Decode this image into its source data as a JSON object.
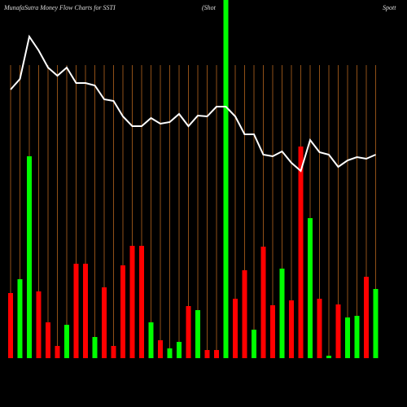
{
  "chart_data": {
    "type": "bar",
    "title": "MunafaSutra  Money Flow  Charts for SSTI",
    "subtitle": "(Shot",
    "subtitle2": "Spott",
    "values": [
      80,
      97,
      248,
      82,
      44,
      15,
      41,
      116,
      116,
      26,
      87,
      15,
      114,
      138,
      138,
      44,
      22,
      12,
      20,
      64,
      59,
      10,
      10,
      null,
      73,
      108,
      35,
      137,
      65,
      110,
      71,
      260,
      172,
      73,
      3,
      66,
      50,
      52,
      100,
      85
    ],
    "bar_colors": [
      "red",
      "green",
      "green",
      "red",
      "red",
      "red",
      "green",
      "red",
      "red",
      "green",
      "red",
      "red",
      "red",
      "red",
      "red",
      "green",
      "red",
      "green",
      "green",
      "red",
      "green",
      "red",
      "red",
      null,
      "red",
      "red",
      "green",
      "red",
      "red",
      "green",
      "red",
      "red",
      "green",
      "red",
      "green",
      "red",
      "green",
      "green",
      "red",
      "green"
    ],
    "line_values": [
      330,
      343,
      395,
      378,
      357,
      347,
      357,
      338,
      338,
      335,
      318,
      316,
      297,
      285,
      285,
      295,
      288,
      290,
      300,
      285,
      298,
      297,
      309,
      309,
      297,
      275,
      275,
      250,
      248,
      254,
      240,
      230,
      268,
      253,
      250,
      235,
      243,
      247,
      245,
      250
    ],
    "ylim": [
      0,
      440
    ],
    "highlight_index": 23,
    "up_color": "#00ff00",
    "down_color": "#ff0000",
    "line_color": "#ffffff",
    "grid_color": "#b5651d"
  }
}
